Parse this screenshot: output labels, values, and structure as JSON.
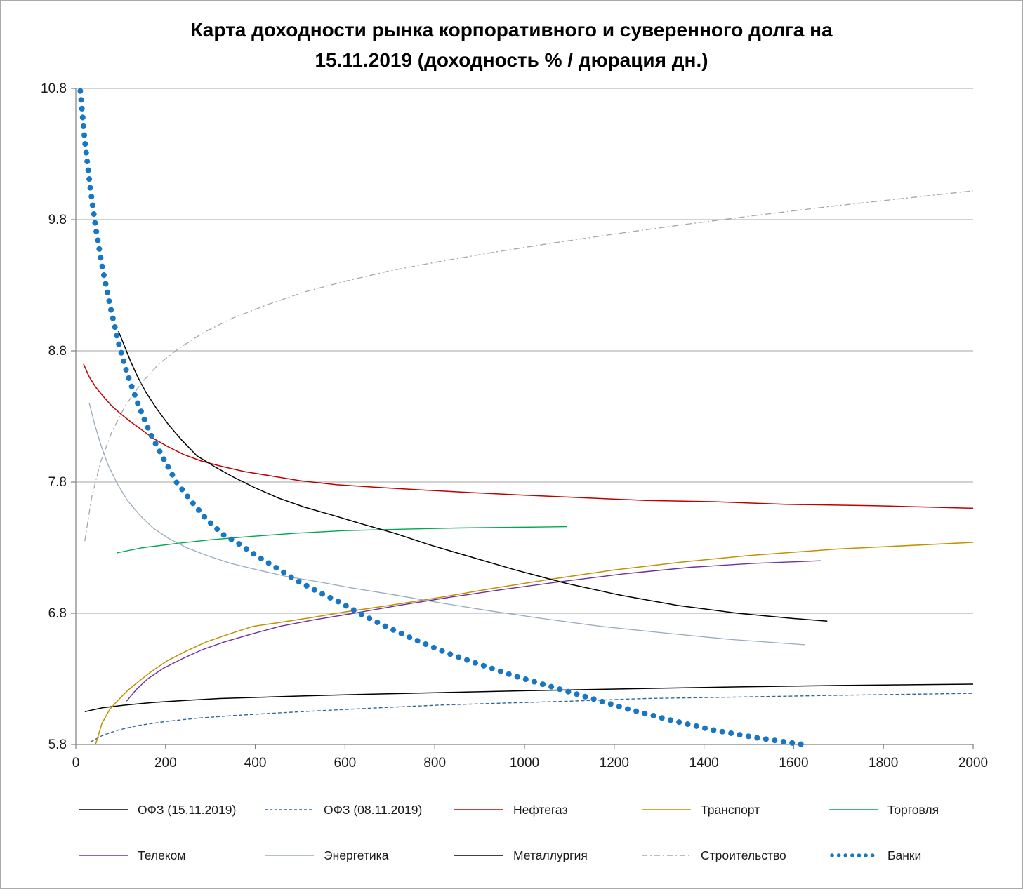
{
  "figure": {
    "title_display": "Карта доходности рынка корпоративного и суверенного долга на\n15.11.2019 (доходность % / дюрация дн.)"
  },
  "chart_data": {
    "type": "line",
    "title": "Карта доходности рынка корпоративного и суверенного долга на 15.11.2019 (доходность % / дюрация дн.)",
    "xlabel": "",
    "ylabel": "",
    "xlim": [
      0,
      2000
    ],
    "ylim": [
      5.8,
      10.8
    ],
    "xticks": [
      0,
      200,
      400,
      600,
      800,
      1000,
      1200,
      1400,
      1600,
      1800,
      2000
    ],
    "yticks": [
      5.8,
      6.8,
      7.8,
      8.8,
      9.8,
      10.8
    ],
    "grid": "horizontal",
    "legend_position": "bottom",
    "colors": {
      "grid": "#a6a6a6",
      "axis": "#808080",
      "background": "#ffffff",
      "tick_label": "#1a1a1a"
    },
    "series": [
      {
        "id": "ofz-15-11-2019",
        "name": "ОФЗ (15.11.2019)",
        "color": "#000000",
        "width": 1.5,
        "line_style": "solid",
        "points": [
          [
            20,
            6.05
          ],
          [
            60,
            6.08
          ],
          [
            110,
            6.1
          ],
          [
            170,
            6.12
          ],
          [
            240,
            6.135
          ],
          [
            320,
            6.15
          ],
          [
            410,
            6.16
          ],
          [
            510,
            6.17
          ],
          [
            620,
            6.18
          ],
          [
            740,
            6.19
          ],
          [
            870,
            6.2
          ],
          [
            1010,
            6.21
          ],
          [
            1160,
            6.22
          ],
          [
            1320,
            6.23
          ],
          [
            1490,
            6.24
          ],
          [
            1700,
            6.25
          ],
          [
            2000,
            6.26
          ]
        ]
      },
      {
        "id": "ofz-08-11-2019",
        "name": "ОФЗ (08.11.2019)",
        "color": "#31679b",
        "width": 1.4,
        "line_style": "dashed",
        "points": [
          [
            33,
            5.82
          ],
          [
            60,
            5.87
          ],
          [
            95,
            5.91
          ],
          [
            140,
            5.945
          ],
          [
            200,
            5.975
          ],
          [
            270,
            6.0
          ],
          [
            350,
            6.02
          ],
          [
            450,
            6.04
          ],
          [
            560,
            6.06
          ],
          [
            680,
            6.08
          ],
          [
            810,
            6.1
          ],
          [
            950,
            6.115
          ],
          [
            1100,
            6.13
          ],
          [
            1270,
            6.15
          ],
          [
            1450,
            6.16
          ],
          [
            1700,
            6.175
          ],
          [
            2000,
            6.19
          ]
        ]
      },
      {
        "id": "neftegaz",
        "name": "Нефтегаз",
        "color": "#c00000",
        "width": 1.5,
        "line_style": "solid",
        "points": [
          [
            17,
            8.7
          ],
          [
            30,
            8.6
          ],
          [
            45,
            8.52
          ],
          [
            62,
            8.45
          ],
          [
            80,
            8.38
          ],
          [
            100,
            8.32
          ],
          [
            122,
            8.26
          ],
          [
            146,
            8.2
          ],
          [
            174,
            8.13
          ],
          [
            205,
            8.07
          ],
          [
            240,
            8.01
          ],
          [
            280,
            7.96
          ],
          [
            325,
            7.92
          ],
          [
            375,
            7.88
          ],
          [
            430,
            7.85
          ],
          [
            500,
            7.81
          ],
          [
            580,
            7.78
          ],
          [
            670,
            7.76
          ],
          [
            770,
            7.74
          ],
          [
            880,
            7.72
          ],
          [
            1000,
            7.7
          ],
          [
            1130,
            7.68
          ],
          [
            1270,
            7.66
          ],
          [
            1420,
            7.65
          ],
          [
            1580,
            7.63
          ],
          [
            1780,
            7.62
          ],
          [
            2000,
            7.6
          ]
        ]
      },
      {
        "id": "transport",
        "name": "Транспорт",
        "color": "#c09200",
        "width": 1.5,
        "line_style": "solid",
        "points": [
          [
            44,
            5.8
          ],
          [
            58,
            5.96
          ],
          [
            76,
            6.07
          ],
          [
            95,
            6.14
          ],
          [
            115,
            6.21
          ],
          [
            140,
            6.28
          ],
          [
            170,
            6.36
          ],
          [
            205,
            6.44
          ],
          [
            245,
            6.51
          ],
          [
            290,
            6.58
          ],
          [
            340,
            6.64
          ],
          [
            395,
            6.7
          ],
          [
            455,
            6.73
          ],
          [
            530,
            6.77
          ],
          [
            600,
            6.81
          ],
          [
            700,
            6.86
          ],
          [
            810,
            6.92
          ],
          [
            930,
            6.99
          ],
          [
            1060,
            7.06
          ],
          [
            1200,
            7.13
          ],
          [
            1350,
            7.19
          ],
          [
            1500,
            7.24
          ],
          [
            1700,
            7.29
          ],
          [
            2000,
            7.34
          ]
        ]
      },
      {
        "id": "torgovlya",
        "name": "Торговля",
        "color": "#00a651",
        "width": 1.4,
        "line_style": "solid",
        "points": [
          [
            91,
            7.26
          ],
          [
            150,
            7.3
          ],
          [
            220,
            7.33
          ],
          [
            300,
            7.36
          ],
          [
            390,
            7.385
          ],
          [
            490,
            7.41
          ],
          [
            600,
            7.43
          ],
          [
            720,
            7.44
          ],
          [
            850,
            7.45
          ],
          [
            980,
            7.455
          ],
          [
            1095,
            7.46
          ]
        ]
      },
      {
        "id": "telekom",
        "name": "Телеком",
        "color": "#7030a0",
        "width": 1.4,
        "line_style": "solid",
        "points": [
          [
            113,
            6.13
          ],
          [
            135,
            6.22
          ],
          [
            160,
            6.3
          ],
          [
            195,
            6.38
          ],
          [
            235,
            6.45
          ],
          [
            280,
            6.52
          ],
          [
            330,
            6.58
          ],
          [
            390,
            6.64
          ],
          [
            455,
            6.7
          ],
          [
            530,
            6.75
          ],
          [
            620,
            6.8
          ],
          [
            720,
            6.86
          ],
          [
            830,
            6.92
          ],
          [
            950,
            6.98
          ],
          [
            1080,
            7.04
          ],
          [
            1220,
            7.1
          ],
          [
            1370,
            7.15
          ],
          [
            1510,
            7.18
          ],
          [
            1660,
            7.2
          ]
        ]
      },
      {
        "id": "energetika",
        "name": "Энергетика",
        "color": "#97aabf",
        "width": 1.3,
        "line_style": "solid",
        "points": [
          [
            30,
            8.4
          ],
          [
            42,
            8.24
          ],
          [
            56,
            8.08
          ],
          [
            72,
            7.93
          ],
          [
            92,
            7.79
          ],
          [
            115,
            7.66
          ],
          [
            142,
            7.55
          ],
          [
            172,
            7.45
          ],
          [
            207,
            7.37
          ],
          [
            247,
            7.3
          ],
          [
            292,
            7.24
          ],
          [
            345,
            7.18
          ],
          [
            405,
            7.13
          ],
          [
            470,
            7.08
          ],
          [
            540,
            7.04
          ],
          [
            620,
            6.99
          ],
          [
            710,
            6.94
          ],
          [
            810,
            6.88
          ],
          [
            920,
            6.82
          ],
          [
            1040,
            6.76
          ],
          [
            1170,
            6.7
          ],
          [
            1310,
            6.65
          ],
          [
            1460,
            6.6
          ],
          [
            1625,
            6.56
          ]
        ]
      },
      {
        "id": "metallurgiya",
        "name": "Металлургия",
        "color": "#000000",
        "width": 1.5,
        "line_style": "solid",
        "points": [
          [
            95,
            8.95
          ],
          [
            108,
            8.84
          ],
          [
            122,
            8.72
          ],
          [
            138,
            8.6
          ],
          [
            157,
            8.48
          ],
          [
            180,
            8.36
          ],
          [
            206,
            8.24
          ],
          [
            236,
            8.12
          ],
          [
            270,
            8.0
          ],
          [
            308,
            7.92
          ],
          [
            350,
            7.84
          ],
          [
            397,
            7.76
          ],
          [
            450,
            7.68
          ],
          [
            508,
            7.61
          ],
          [
            570,
            7.55
          ],
          [
            638,
            7.48
          ],
          [
            710,
            7.41
          ],
          [
            790,
            7.32
          ],
          [
            880,
            7.23
          ],
          [
            980,
            7.13
          ],
          [
            1090,
            7.03
          ],
          [
            1210,
            6.94
          ],
          [
            1340,
            6.86
          ],
          [
            1475,
            6.8
          ],
          [
            1600,
            6.76
          ],
          [
            1675,
            6.74
          ]
        ]
      },
      {
        "id": "stroitelstvo",
        "name": "Строительство",
        "color": "#a6a6a6",
        "width": 1.3,
        "line_style": "dashdot",
        "points": [
          [
            20,
            7.35
          ],
          [
            35,
            7.68
          ],
          [
            55,
            7.95
          ],
          [
            80,
            8.18
          ],
          [
            110,
            8.38
          ],
          [
            145,
            8.55
          ],
          [
            185,
            8.7
          ],
          [
            230,
            8.82
          ],
          [
            285,
            8.94
          ],
          [
            350,
            9.05
          ],
          [
            425,
            9.15
          ],
          [
            510,
            9.25
          ],
          [
            600,
            9.33
          ],
          [
            700,
            9.41
          ],
          [
            810,
            9.48
          ],
          [
            930,
            9.55
          ],
          [
            1060,
            9.62
          ],
          [
            1200,
            9.69
          ],
          [
            1350,
            9.76
          ],
          [
            1510,
            9.83
          ],
          [
            1680,
            9.9
          ],
          [
            1840,
            9.96
          ],
          [
            2000,
            10.02
          ]
        ]
      },
      {
        "id": "banki",
        "name": "Банки",
        "color": "#1777c4",
        "width": 8,
        "line_style": "dotted-thick",
        "points": [
          [
            10,
            10.78
          ],
          [
            20,
            10.4
          ],
          [
            32,
            10.05
          ],
          [
            45,
            9.72
          ],
          [
            60,
            9.42
          ],
          [
            78,
            9.12
          ],
          [
            95,
            8.86
          ],
          [
            115,
            8.62
          ],
          [
            138,
            8.4
          ],
          [
            163,
            8.19
          ],
          [
            192,
            8.0
          ],
          [
            224,
            7.8
          ],
          [
            258,
            7.65
          ],
          [
            293,
            7.51
          ],
          [
            328,
            7.4
          ],
          [
            363,
            7.33
          ],
          [
            402,
            7.24
          ],
          [
            445,
            7.15
          ],
          [
            492,
            7.05
          ],
          [
            542,
            6.96
          ],
          [
            590,
            6.88
          ],
          [
            632,
            6.8
          ],
          [
            690,
            6.7
          ],
          [
            755,
            6.6
          ],
          [
            825,
            6.5
          ],
          [
            900,
            6.41
          ],
          [
            980,
            6.32
          ],
          [
            1060,
            6.24
          ],
          [
            1140,
            6.16
          ],
          [
            1230,
            6.07
          ],
          [
            1320,
            5.99
          ],
          [
            1420,
            5.91
          ],
          [
            1520,
            5.85
          ],
          [
            1620,
            5.8
          ]
        ]
      }
    ]
  }
}
